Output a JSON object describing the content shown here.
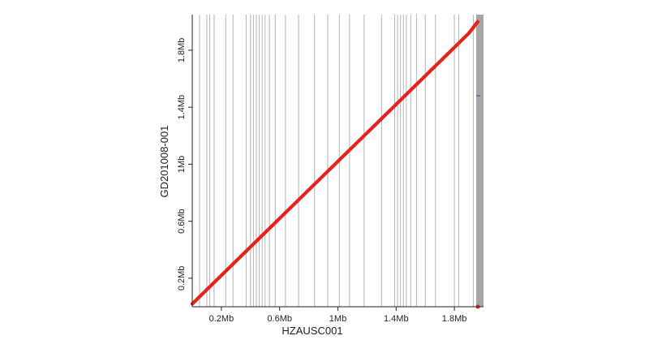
{
  "chart_data": {
    "type": "scatter",
    "xlabel": "HZAUSC001",
    "ylabel": "GD201008-001",
    "xlim": [
      0,
      2.0
    ],
    "ylim": [
      0,
      2.05
    ],
    "x_unit": "Mb",
    "y_unit": "Mb",
    "x_ticks": [
      {
        "value": 0.2,
        "label": "0.2Mb"
      },
      {
        "value": 0.6,
        "label": "0.6Mb"
      },
      {
        "value": 1.0,
        "label": "1Mb"
      },
      {
        "value": 1.4,
        "label": "1.4Mb"
      },
      {
        "value": 1.8,
        "label": "1.8Mb"
      }
    ],
    "y_ticks": [
      {
        "value": 0.2,
        "label": "0.2Mb"
      },
      {
        "value": 0.6,
        "label": "0.6Mb"
      },
      {
        "value": 1.0,
        "label": "1Mb"
      },
      {
        "value": 1.4,
        "label": "1.4Mb"
      },
      {
        "value": 1.8,
        "label": "1.8Mb"
      }
    ],
    "contig_boundaries_x": [
      0.05,
      0.1,
      0.12,
      0.15,
      0.23,
      0.28,
      0.37,
      0.4,
      0.42,
      0.44,
      0.46,
      0.48,
      0.5,
      0.53,
      0.57,
      0.64,
      0.73,
      0.84,
      0.93,
      1.01,
      1.08,
      1.18,
      1.3,
      1.39,
      1.41,
      1.43,
      1.45,
      1.47,
      1.5,
      1.54,
      1.6,
      1.67,
      1.8,
      1.83,
      1.93
    ],
    "alignment_series": {
      "name": "",
      "x": [
        0,
        0.1,
        0.2,
        0.3,
        0.4,
        0.5,
        0.6,
        0.7,
        0.8,
        0.9,
        1.0,
        1.1,
        1.2,
        1.3,
        1.4,
        1.5,
        1.6,
        1.7,
        1.8,
        1.9,
        1.96
      ],
      "y": [
        0.02,
        0.12,
        0.22,
        0.32,
        0.42,
        0.52,
        0.62,
        0.72,
        0.82,
        0.92,
        1.02,
        1.12,
        1.22,
        1.32,
        1.42,
        1.52,
        1.62,
        1.72,
        1.82,
        1.92,
        2.0
      ]
    },
    "grid": false,
    "colors": {
      "alignment": "#e3241b",
      "boundary": "#b5b5b5",
      "right_band": "#a6a6a6",
      "axis": "#222222",
      "marker": "#3b3bcc"
    }
  }
}
